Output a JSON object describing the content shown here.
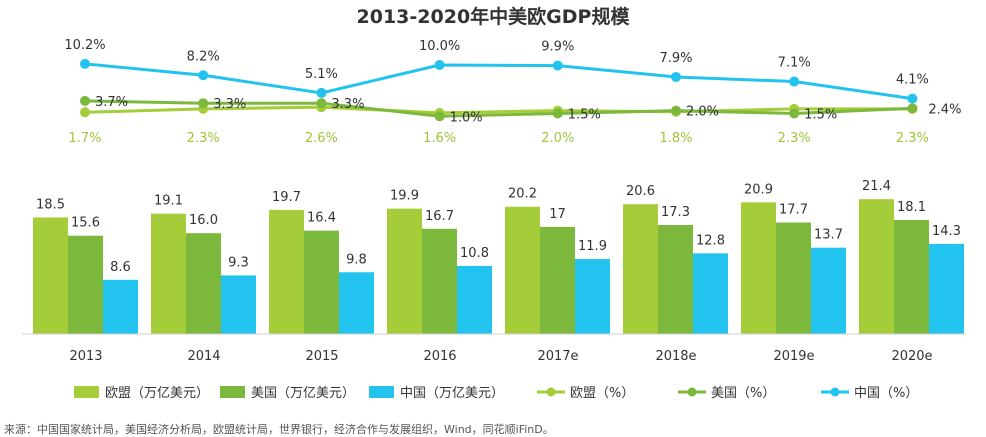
{
  "chart_data": {
    "type": "bar+line",
    "title": "2013-2020年中美欧GDP规模",
    "categories": [
      "2013",
      "2014",
      "2015",
      "2016",
      "2017e",
      "2018e",
      "2019e",
      "2020e"
    ],
    "bar_series": [
      {
        "name": "欧盟（万亿美元）",
        "values": [
          18.5,
          19.1,
          19.7,
          19.9,
          20.2,
          20.6,
          20.9,
          21.4
        ],
        "labels": [
          "18.5",
          "19.1",
          "19.7",
          "19.9",
          "20.2",
          "20.6",
          "20.9",
          "21.4"
        ],
        "color": "#a5cd39"
      },
      {
        "name": "美国（万亿美元）",
        "values": [
          15.6,
          16.0,
          16.4,
          16.7,
          17,
          17.3,
          17.7,
          18.1
        ],
        "labels": [
          "15.6",
          "16.0",
          "16.4",
          "16.7",
          "17",
          "17.3",
          "17.7",
          "18.1"
        ],
        "color": "#7cb83c"
      },
      {
        "name": "中国（万亿美元）",
        "values": [
          8.6,
          9.3,
          9.8,
          10.8,
          11.9,
          12.8,
          13.7,
          14.3
        ],
        "labels": [
          "8.6",
          "9.3",
          "9.8",
          "10.8",
          "11.9",
          "12.8",
          "13.7",
          "14.3"
        ],
        "color": "#22c3ee"
      }
    ],
    "line_series": [
      {
        "name": "欧盟（%）",
        "values": [
          1.7,
          2.3,
          2.6,
          1.6,
          2.0,
          1.8,
          2.3,
          2.3
        ],
        "labels": [
          "1.7%",
          "2.3%",
          "2.6%",
          "1.6%",
          "2.0%",
          "1.8%",
          "2.3%",
          "2.3%"
        ],
        "color": "#a5cd39"
      },
      {
        "name": "美国（%）",
        "values": [
          3.7,
          3.3,
          3.3,
          1.0,
          1.5,
          2.0,
          1.5,
          2.4
        ],
        "labels": [
          "3.7%",
          "3.3%",
          "3.3%",
          "1.0%",
          "1.5%",
          "2.0%",
          "1.5%",
          "2.4%"
        ],
        "color": "#7cb83c"
      },
      {
        "name": "中国（%）",
        "values": [
          10.2,
          8.2,
          5.1,
          10.0,
          9.9,
          7.9,
          7.1,
          4.1
        ],
        "labels": [
          "10.2%",
          "8.2%",
          "5.1%",
          "10.0%",
          "9.9%",
          "7.9%",
          "7.1%",
          "4.1%"
        ],
        "color": "#22c3ee"
      }
    ],
    "legend_position": "bottom",
    "grid": false
  },
  "source": "来源：中国国家统计局，美国经济分析局，欧盟统计局，世界银行，经济合作与发展组织，Wind，同花顺iFinD。"
}
